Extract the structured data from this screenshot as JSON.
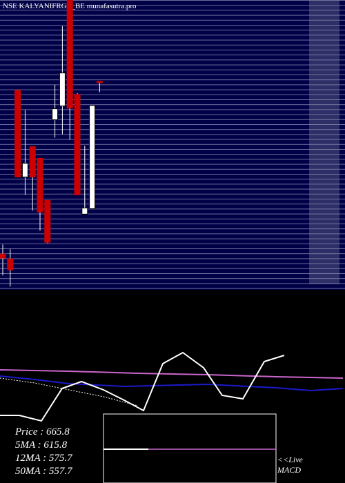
{
  "chart_data": [
    {
      "type": "candlestick",
      "title": "NSE KALYANIFRGE_BE munafasutra.pro",
      "ylim": [
        571,
        720
      ],
      "up_color": "#ffffff",
      "down_color": "#cc0000",
      "open": [
        589.4,
        586.9,
        673.6,
        629,
        644.6,
        638.6,
        617,
        658.4,
        665.5,
        720,
        671.5,
        609.9,
        612.7,
        678.2
      ],
      "high": [
        594.3,
        591.9,
        673.6,
        663.4,
        644.6,
        638.6,
        617,
        676.5,
        706.5,
        720,
        672.2,
        645,
        665.8,
        678.2
      ],
      "low": [
        578.4,
        572.7,
        629,
        619.8,
        611.7,
        601.4,
        595,
        649.2,
        651,
        648.1,
        619.8,
        609.9,
        612.7,
        672.6
      ],
      "close": [
        587.3,
        581.2,
        629,
        636.1,
        629,
        611,
        595.4,
        664.1,
        682.5,
        664.4,
        619.8,
        613.1,
        665.8,
        677.5
      ]
    },
    {
      "type": "line",
      "xlim": [
        0,
        500
      ],
      "ylim": [
        0,
        280
      ],
      "series": [
        {
          "color": "#cc66cc",
          "x": [
            0,
            100,
            200,
            300,
            400,
            497
          ],
          "values": [
            164,
            162,
            159,
            157,
            154,
            152
          ]
        },
        {
          "color": "#1a1acc",
          "x": [
            0,
            50,
            100,
            180,
            300,
            400,
            450,
            497
          ],
          "values": [
            155,
            150,
            144,
            140,
            143,
            138,
            134,
            137
          ]
        },
        {
          "color": "#ffffff",
          "dashed": true,
          "x": [
            0,
            50,
            100,
            150,
            200
          ],
          "values": [
            152,
            145,
            135,
            125,
            112
          ]
        },
        {
          "color": "#ffffff",
          "x": [
            0,
            28,
            60,
            90,
            118,
            150,
            180,
            208,
            236,
            265,
            295,
            322,
            352,
            383,
            412
          ],
          "values": [
            98,
            98,
            90,
            137,
            147,
            135,
            120,
            105,
            173,
            189,
            167,
            127,
            122,
            176,
            185
          ]
        }
      ],
      "labels": [
        "Price   : 665.8",
        "5MA : 615.8",
        "12MA : 575.7",
        "50MA : 557.7"
      ],
      "annotation": [
        "<<Live",
        "MACD"
      ]
    }
  ]
}
